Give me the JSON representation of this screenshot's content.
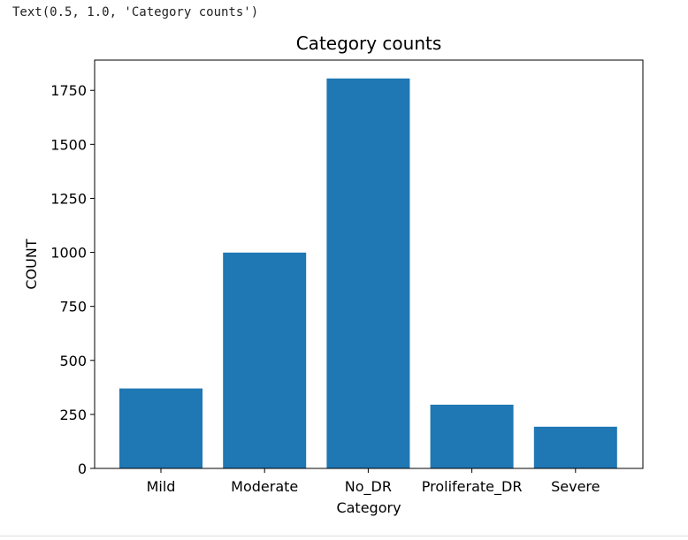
{
  "output": {
    "text": "Text(0.5, 1.0, 'Category counts')"
  },
  "chart_data": {
    "type": "bar",
    "title": "Category counts",
    "xlabel": "Category",
    "ylabel": "COUNT",
    "categories": [
      "Mild",
      "Moderate",
      "No_DR",
      "Proliferate_DR",
      "Severe"
    ],
    "values": [
      370,
      999,
      1805,
      295,
      193
    ],
    "ylim": [
      0,
      1890
    ],
    "yticks": [
      0,
      250,
      500,
      750,
      1000,
      1250,
      1500,
      1750
    ],
    "bar_color": "#1f77b4",
    "grid": false
  }
}
